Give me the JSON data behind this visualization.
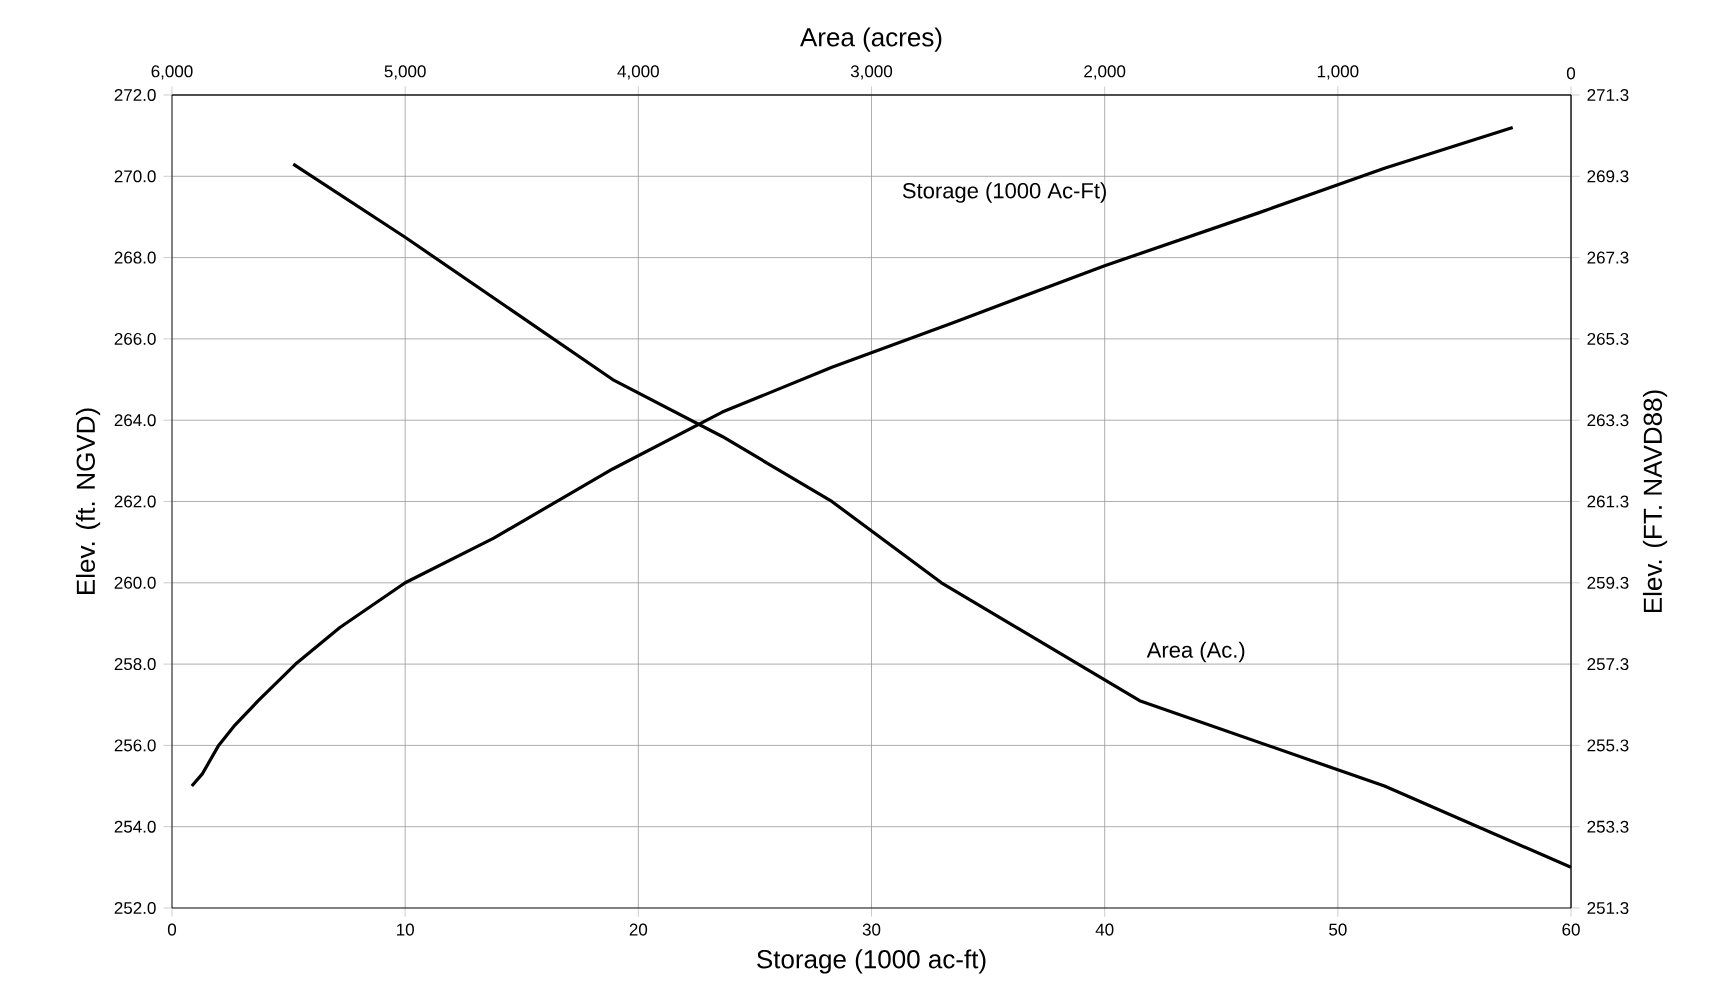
{
  "chart_data": {
    "type": "line",
    "xlabel": "Storage (1000 ac-ft)",
    "ylabel": "Elev. (ft. NGVD)",
    "y2label": "Elev. (FT. NAVD88)",
    "x2label": "Area (acres)",
    "xlim": [
      0,
      60
    ],
    "xticks": [
      0,
      10,
      20,
      30,
      40,
      50,
      60
    ],
    "x2lim": [
      6000,
      0
    ],
    "x2ticks": [
      {
        "value": 6000,
        "label": "6,000"
      },
      {
        "value": 5000,
        "label": "5,000"
      },
      {
        "value": 4000,
        "label": "4,000"
      },
      {
        "value": 3000,
        "label": "3,000"
      },
      {
        "value": 2000,
        "label": "2,000"
      },
      {
        "value": 1000,
        "label": "1,000"
      },
      0
    ],
    "ylim": [
      252,
      272
    ],
    "yticks": [
      {
        "value": 252,
        "label": "252.0"
      },
      {
        "value": 254,
        "label": "254.0"
      },
      {
        "value": 256,
        "label": "256.0"
      },
      {
        "value": 258,
        "label": "258.0"
      },
      {
        "value": 260,
        "label": "260.0"
      },
      {
        "value": 262,
        "label": "262.0"
      },
      {
        "value": 264,
        "label": "264.0"
      },
      {
        "value": 266,
        "label": "266.0"
      },
      {
        "value": 268,
        "label": "268.0"
      },
      {
        "value": 270,
        "label": "270.0"
      },
      {
        "value": 272,
        "label": "272.0"
      }
    ],
    "y2lim": [
      251.3,
      271.3
    ],
    "y2ticks": [
      251.3,
      253.3,
      255.3,
      257.3,
      259.3,
      261.3,
      263.3,
      265.3,
      267.3,
      269.3,
      271.3
    ],
    "grid": true,
    "series": [
      {
        "name": "Storage (1000 Ac-Ft)",
        "color": "#000000",
        "x": [
          0.85,
          1.3,
          2.0,
          2.7,
          3.7,
          5.3,
          7.2,
          10.0,
          13.8,
          18.9,
          23.6,
          28.3,
          33.5,
          40.0,
          46.6,
          52.0,
          57.5
        ],
        "values": [
          255.0,
          255.3,
          256.0,
          256.5,
          257.1,
          258.0,
          258.9,
          260.0,
          261.1,
          262.8,
          264.2,
          265.3,
          266.4,
          267.8,
          269.1,
          270.2,
          271.2
        ]
      },
      {
        "name": "Area (Ac.)",
        "color": "#000000",
        "axis": "x2",
        "x": [
          5480,
          5000,
          4110,
          3640,
          3170,
          2700,
          1850,
          800,
          0
        ],
        "values": [
          270.3,
          268.5,
          265.0,
          263.6,
          262.0,
          260.0,
          257.1,
          255.0,
          253.0
        ]
      }
    ]
  }
}
